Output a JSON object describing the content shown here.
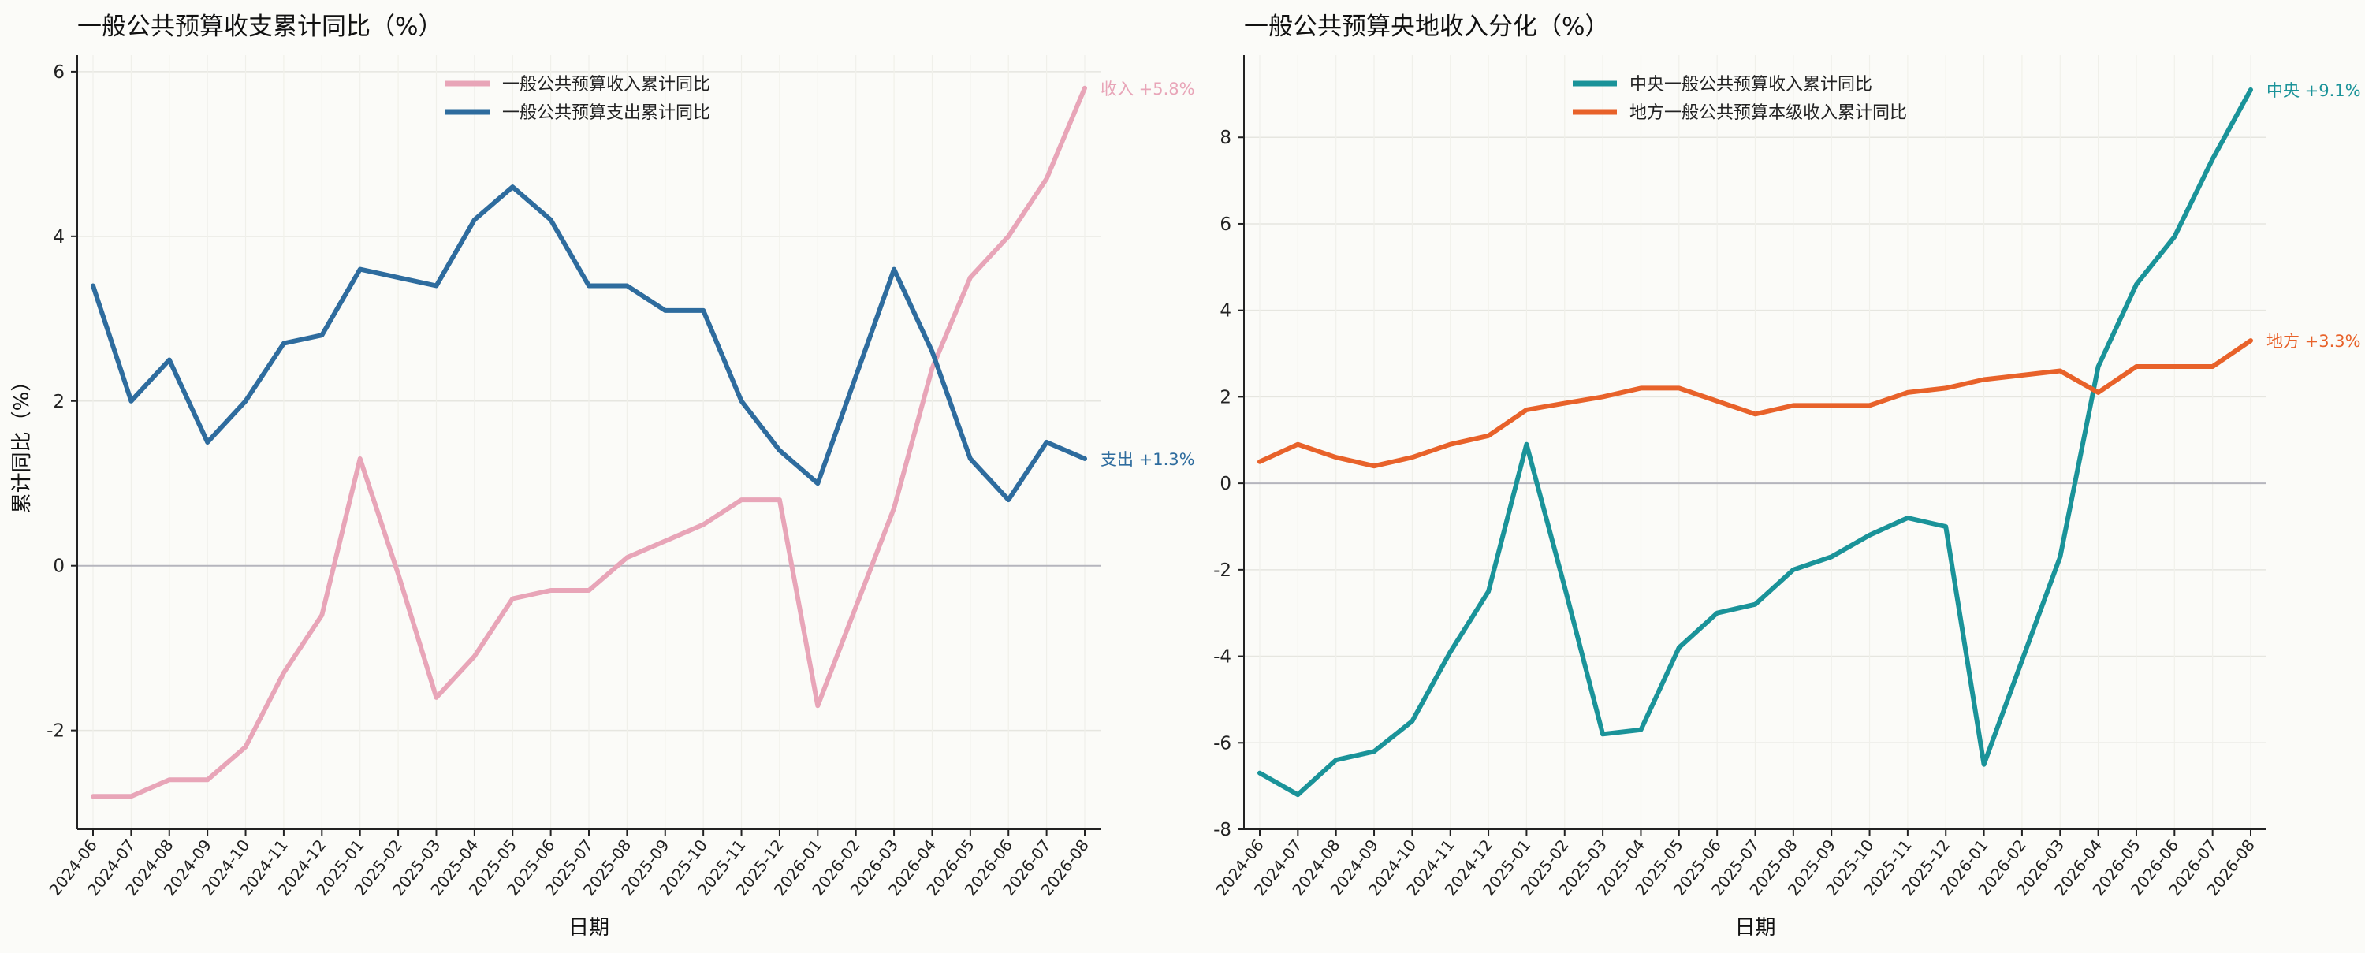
{
  "chart_data": [
    {
      "type": "line",
      "title": "一般公共预算收支累计同比（%）",
      "xlabel": "日期",
      "ylabel": "累计同比（%）",
      "ylim": [
        -3.2,
        6.2
      ],
      "yticks": [
        -2,
        0,
        2,
        4,
        6
      ],
      "ytick_labels": [
        "-2",
        "0",
        "2",
        "4",
        "6"
      ],
      "grid": true,
      "zero_line": true,
      "legend_position": "top-center",
      "categories": [
        "2024-06",
        "2024-07",
        "2024-08",
        "2024-09",
        "2024-10",
        "2024-11",
        "2024-12",
        "2025-01",
        "2025-02",
        "2025-03",
        "2025-04",
        "2025-05",
        "2025-06",
        "2025-07",
        "2025-08",
        "2025-09",
        "2025-10",
        "2025-11",
        "2025-12",
        "2026-01",
        "2026-02",
        "2026-03",
        "2026-04",
        "2026-05",
        "2026-06",
        "2026-07",
        "2026-08"
      ],
      "series": [
        {
          "name": "一般公共预算收入累计同比",
          "color": "#e8a5b8",
          "values": [
            -2.8,
            -2.8,
            -2.6,
            -2.6,
            -2.2,
            -1.3,
            -0.6,
            1.3,
            -0.1,
            -1.6,
            -1.1,
            -0.4,
            -0.3,
            -0.3,
            0.1,
            0.3,
            0.5,
            0.8,
            0.8,
            -1.7,
            -0.5,
            0.7,
            2.4,
            3.5,
            4.0,
            4.7,
            5.8
          ],
          "end_label": "收入 +5.8%"
        },
        {
          "name": "一般公共预算支出累计同比",
          "color": "#2e6c9e",
          "values": [
            3.4,
            2.0,
            2.5,
            1.5,
            2.0,
            2.7,
            2.8,
            3.6,
            3.5,
            3.4,
            4.2,
            4.6,
            4.2,
            3.4,
            3.4,
            3.1,
            3.1,
            2.0,
            1.4,
            1.0,
            2.3,
            3.6,
            2.6,
            1.3,
            0.8,
            1.5,
            1.3
          ],
          "end_label": "支出 +1.3%"
        }
      ]
    },
    {
      "type": "line",
      "title": "一般公共预算央地收入分化（%）",
      "xlabel": "日期",
      "ylabel": "",
      "ylim": [
        -8,
        9.9
      ],
      "yticks": [
        -8,
        -6,
        -4,
        -2,
        0,
        2,
        4,
        6,
        8
      ],
      "ytick_labels": [
        "-8",
        "-6",
        "-4",
        "-2",
        "0",
        "2",
        "4",
        "6",
        "8"
      ],
      "grid": true,
      "zero_line": true,
      "legend_position": "top-center",
      "categories": [
        "2024-06",
        "2024-07",
        "2024-08",
        "2024-09",
        "2024-10",
        "2024-11",
        "2024-12",
        "2025-01",
        "2025-02",
        "2025-03",
        "2025-04",
        "2025-05",
        "2025-06",
        "2025-07",
        "2025-08",
        "2025-09",
        "2025-10",
        "2025-11",
        "2025-12",
        "2026-01",
        "2026-02",
        "2026-03",
        "2026-04",
        "2026-05",
        "2026-06",
        "2026-07",
        "2026-08"
      ],
      "series": [
        {
          "name": "中央一般公共预算收入累计同比",
          "color": "#1a9399",
          "values": [
            -6.7,
            -7.2,
            -6.4,
            -6.2,
            -5.5,
            -3.9,
            -2.5,
            0.9,
            -2.4,
            -5.8,
            -5.7,
            -3.8,
            -3.0,
            -2.8,
            -2.0,
            -1.7,
            -1.2,
            -0.8,
            -1.0,
            -6.5,
            -4.1,
            -1.7,
            2.7,
            4.6,
            5.7,
            7.5,
            9.1
          ],
          "end_label": "中央 +9.1%"
        },
        {
          "name": "地方一般公共预算本级收入累计同比",
          "color": "#e8622a",
          "values": [
            0.5,
            0.9,
            0.6,
            0.4,
            0.6,
            0.9,
            1.1,
            1.7,
            1.85,
            2.0,
            2.2,
            2.2,
            1.9,
            1.6,
            1.8,
            1.8,
            1.8,
            2.1,
            2.2,
            2.4,
            2.5,
            2.6,
            2.1,
            2.7,
            2.7,
            2.7,
            3.3
          ],
          "end_label": "地方 +3.3%"
        }
      ]
    }
  ]
}
